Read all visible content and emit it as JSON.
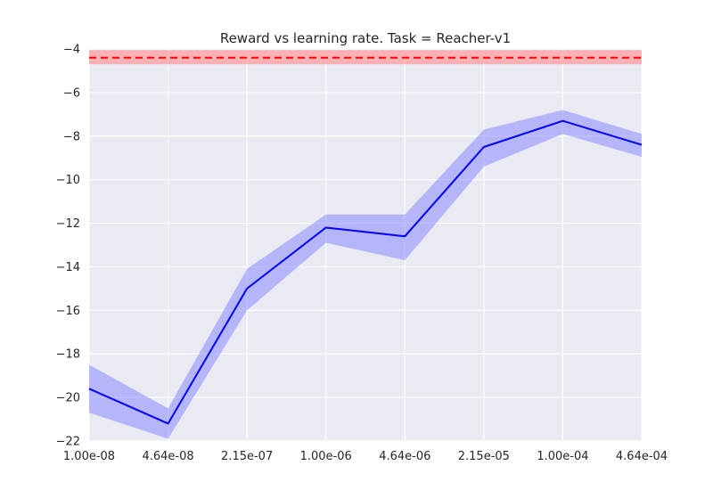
{
  "chart_data": {
    "type": "line",
    "title": "Reward vs learning rate. Task = Reacher-v1",
    "xlabel": "",
    "ylabel": "",
    "categories": [
      "1.00e-08",
      "4.64e-08",
      "2.15e-07",
      "1.00e-06",
      "4.64e-06",
      "2.15e-05",
      "1.00e-04",
      "4.64e-04"
    ],
    "ylim": [
      -22,
      -4
    ],
    "yticks": [
      -22,
      -20,
      -18,
      -16,
      -14,
      -12,
      -10,
      -8,
      -6,
      -4
    ],
    "grid": true,
    "series": [
      {
        "values": [
          -19.6,
          -21.2,
          -15.0,
          -12.2,
          -12.6,
          -8.5,
          -7.3,
          -8.4
        ],
        "lower": [
          -20.7,
          -21.9,
          -16.0,
          -12.9,
          -13.7,
          -9.4,
          -7.9,
          -8.95
        ],
        "upper": [
          -18.5,
          -20.5,
          -14.1,
          -11.6,
          -11.6,
          -7.7,
          -6.8,
          -7.9
        ],
        "color": "#0000ff",
        "band_color": "#8080ff"
      }
    ],
    "reference": {
      "value": -4.4,
      "lower": -4.7,
      "upper": -4.05,
      "color": "#ff0000",
      "band_color": "#ff9999",
      "style": "dashed"
    }
  },
  "colors": {
    "plot_background": "#eaeaf2",
    "grid": "#ffffff",
    "text": "#262626"
  }
}
